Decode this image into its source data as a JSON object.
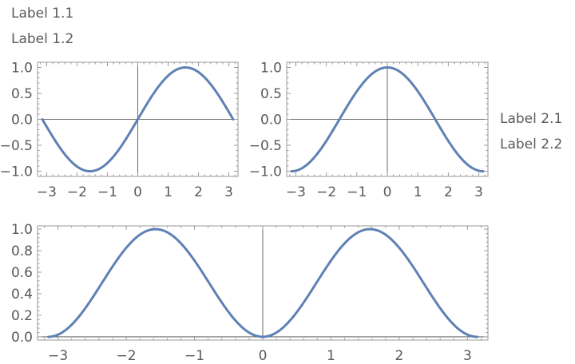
{
  "labels_top": [
    "Label 1.1",
    "Label 1.2"
  ],
  "labels_right": [
    "Label 2.1",
    "Label 2.2"
  ],
  "styles": {
    "curve_color": "#5e81b5",
    "axis_color": "#444444",
    "frame_color": "#9a9a9a"
  },
  "chart_data": [
    {
      "type": "line",
      "function": "sin(x)",
      "x": [
        -3.1416,
        -2.618,
        -2.0944,
        -1.5708,
        -1.0472,
        -0.5236,
        0,
        0.5236,
        1.0472,
        1.5708,
        2.0944,
        2.618,
        3.1416
      ],
      "y": [
        0,
        -0.5,
        -0.866,
        -1,
        -0.866,
        -0.5,
        0,
        0.5,
        0.866,
        1,
        0.866,
        0.5,
        0
      ],
      "xlim": [
        -3.3,
        3.3
      ],
      "ylim": [
        -1.1,
        1.1
      ],
      "xticks": [
        -3,
        -2,
        -1,
        0,
        1,
        2,
        3
      ],
      "xtick_labels": [
        "−3",
        "−2",
        "−1",
        "0",
        "1",
        "2",
        "3"
      ],
      "yticks": [
        -1,
        -0.5,
        0,
        0.5,
        1
      ],
      "ytick_labels": [
        "−1.0",
        "−0.5",
        "0.0",
        "0.5",
        "1.0"
      ],
      "grid": false
    },
    {
      "type": "line",
      "function": "cos(x)",
      "x": [
        -3.1416,
        -2.618,
        -2.0944,
        -1.5708,
        -1.0472,
        -0.5236,
        0,
        0.5236,
        1.0472,
        1.5708,
        2.0944,
        2.618,
        3.1416
      ],
      "y": [
        -1,
        -0.866,
        -0.5,
        0,
        0.5,
        0.866,
        1,
        0.866,
        0.5,
        0,
        -0.5,
        -0.866,
        -1
      ],
      "xlim": [
        -3.3,
        3.3
      ],
      "ylim": [
        -1.1,
        1.1
      ],
      "xticks": [
        -3,
        -2,
        -1,
        0,
        1,
        2,
        3
      ],
      "xtick_labels": [
        "−3",
        "−2",
        "−1",
        "0",
        "1",
        "2",
        "3"
      ],
      "yticks": [
        -1,
        -0.5,
        0,
        0.5,
        1
      ],
      "ytick_labels": [
        "−1.0",
        "−0.5",
        "0.0",
        "0.5",
        "1.0"
      ],
      "grid": false
    },
    {
      "type": "line",
      "function": "sin(x)^2",
      "x": [
        -3.1416,
        -2.618,
        -2.0944,
        -1.5708,
        -1.0472,
        -0.5236,
        0,
        0.5236,
        1.0472,
        1.5708,
        2.0944,
        2.618,
        3.1416
      ],
      "y": [
        0,
        0.25,
        0.75,
        1,
        0.75,
        0.25,
        0,
        0.25,
        0.75,
        1,
        0.75,
        0.25,
        0
      ],
      "xlim": [
        -3.3,
        3.3
      ],
      "ylim": [
        -0.03,
        1.03
      ],
      "xticks": [
        -3,
        -2,
        -1,
        0,
        1,
        2,
        3
      ],
      "xtick_labels": [
        "−3",
        "−2",
        "−1",
        "0",
        "1",
        "2",
        "3"
      ],
      "yticks": [
        0,
        0.2,
        0.4,
        0.6,
        0.8,
        1
      ],
      "ytick_labels": [
        "0.0",
        "0.2",
        "0.4",
        "0.6",
        "0.8",
        "1.0"
      ],
      "grid": false
    }
  ]
}
